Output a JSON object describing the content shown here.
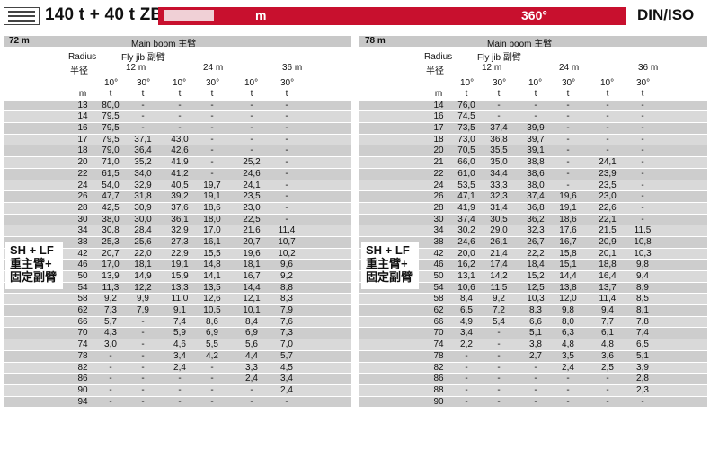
{
  "header": {
    "title": "140 t + 40 t ZB",
    "unit_m": "m",
    "slew": "360°",
    "standard": "DIN/ISO"
  },
  "panels": [
    {
      "boom_length": "72 m",
      "main_boom": "Main boom 主臂",
      "radius_en": "Radius",
      "radius_cn": "半径",
      "fly_jib": "Fly jib 副臂",
      "jib_lengths": [
        "12 m",
        "24 m",
        "36 m"
      ],
      "angles": [
        "10°",
        "30°",
        "10°",
        "30°",
        "10°",
        "30°"
      ],
      "units": [
        "m",
        "t",
        "t",
        "t",
        "t",
        "t",
        "t"
      ],
      "config_label": [
        "SH + LF",
        "重主臂+",
        "固定副臂"
      ],
      "rows": [
        [
          "13",
          "80,0",
          "-",
          "-",
          "-",
          "-",
          "-"
        ],
        [
          "14",
          "79,5",
          "-",
          "-",
          "-",
          "-",
          "-"
        ],
        [
          "16",
          "79,5",
          "-",
          "-",
          "-",
          "-",
          "-"
        ],
        [
          "17",
          "79,5",
          "37,1",
          "43,0",
          "-",
          "-",
          "-"
        ],
        [
          "18",
          "79,0",
          "36,4",
          "42,6",
          "-",
          "-",
          "-"
        ],
        [
          "20",
          "71,0",
          "35,2",
          "41,9",
          "-",
          "25,2",
          "-"
        ],
        [
          "22",
          "61,5",
          "34,0",
          "41,2",
          "-",
          "24,6",
          "-"
        ],
        [
          "24",
          "54,0",
          "32,9",
          "40,5",
          "19,7",
          "24,1",
          "-"
        ],
        [
          "26",
          "47,7",
          "31,8",
          "39,2",
          "19,1",
          "23,5",
          "-"
        ],
        [
          "28",
          "42,5",
          "30,9",
          "37,6",
          "18,6",
          "23,0",
          "-"
        ],
        [
          "30",
          "38,0",
          "30,0",
          "36,1",
          "18,0",
          "22,5",
          "-"
        ],
        [
          "34",
          "30,8",
          "28,4",
          "32,9",
          "17,0",
          "21,6",
          "11,4"
        ],
        [
          "38",
          "25,3",
          "25,6",
          "27,3",
          "16,1",
          "20,7",
          "10,7"
        ],
        [
          "42",
          "20,7",
          "22,0",
          "22,9",
          "15,5",
          "19,6",
          "10,2"
        ],
        [
          "46",
          "17,0",
          "18,1",
          "19,1",
          "14,8",
          "18,1",
          "9,6"
        ],
        [
          "50",
          "13,9",
          "14,9",
          "15,9",
          "14,1",
          "16,7",
          "9,2"
        ],
        [
          "54",
          "11,3",
          "12,2",
          "13,3",
          "13,5",
          "14,4",
          "8,8"
        ],
        [
          "58",
          "9,2",
          "9,9",
          "11,0",
          "12,6",
          "12,1",
          "8,3"
        ],
        [
          "62",
          "7,3",
          "7,9",
          "9,1",
          "10,5",
          "10,1",
          "7,9"
        ],
        [
          "66",
          "5,7",
          "-",
          "7,4",
          "8,6",
          "8,4",
          "7,6"
        ],
        [
          "70",
          "4,3",
          "-",
          "5,9",
          "6,9",
          "6,9",
          "7,3"
        ],
        [
          "74",
          "3,0",
          "-",
          "4,6",
          "5,5",
          "5,6",
          "7,0"
        ],
        [
          "78",
          "-",
          "-",
          "3,4",
          "4,2",
          "4,4",
          "5,7"
        ],
        [
          "82",
          "-",
          "-",
          "2,4",
          "-",
          "3,3",
          "4,5"
        ],
        [
          "86",
          "-",
          "-",
          "-",
          "-",
          "2,4",
          "3,4"
        ],
        [
          "90",
          "-",
          "-",
          "-",
          "-",
          "-",
          "2,4"
        ],
        [
          "94",
          "-",
          "-",
          "-",
          "-",
          "-",
          "-"
        ]
      ]
    },
    {
      "boom_length": "78 m",
      "main_boom": "Main boom 主臂",
      "radius_en": "Radius",
      "radius_cn": "半径",
      "fly_jib": "Fly jib 副臂",
      "jib_lengths": [
        "12 m",
        "24 m",
        "36 m"
      ],
      "angles": [
        "10°",
        "30°",
        "10°",
        "30°",
        "10°",
        "30°"
      ],
      "units": [
        "m",
        "t",
        "t",
        "t",
        "t",
        "t",
        "t"
      ],
      "config_label": [
        "SH + LF",
        "重主臂+",
        "固定副臂"
      ],
      "rows": [
        [
          "14",
          "76,0",
          "-",
          "-",
          "-",
          "-",
          "-"
        ],
        [
          "16",
          "74,5",
          "-",
          "-",
          "-",
          "-",
          "-"
        ],
        [
          "17",
          "73,5",
          "37,4",
          "39,9",
          "-",
          "-",
          "-"
        ],
        [
          "18",
          "73,0",
          "36,8",
          "39,7",
          "-",
          "-",
          "-"
        ],
        [
          "20",
          "70,5",
          "35,5",
          "39,1",
          "-",
          "-",
          "-"
        ],
        [
          "21",
          "66,0",
          "35,0",
          "38,8",
          "-",
          "24,1",
          "-"
        ],
        [
          "22",
          "61,0",
          "34,4",
          "38,6",
          "-",
          "23,9",
          "-"
        ],
        [
          "24",
          "53,5",
          "33,3",
          "38,0",
          "-",
          "23,5",
          "-"
        ],
        [
          "26",
          "47,1",
          "32,3",
          "37,4",
          "19,6",
          "23,0",
          "-"
        ],
        [
          "28",
          "41,9",
          "31,4",
          "36,8",
          "19,1",
          "22,6",
          "-"
        ],
        [
          "30",
          "37,4",
          "30,5",
          "36,2",
          "18,6",
          "22,1",
          "-"
        ],
        [
          "34",
          "30,2",
          "29,0",
          "32,3",
          "17,6",
          "21,5",
          "11,5"
        ],
        [
          "38",
          "24,6",
          "26,1",
          "26,7",
          "16,7",
          "20,9",
          "10,8"
        ],
        [
          "42",
          "20,0",
          "21,4",
          "22,2",
          "15,8",
          "20,1",
          "10,3"
        ],
        [
          "46",
          "16,2",
          "17,4",
          "18,4",
          "15,1",
          "18,8",
          "9,8"
        ],
        [
          "50",
          "13,1",
          "14,2",
          "15,2",
          "14,4",
          "16,4",
          "9,4"
        ],
        [
          "54",
          "10,6",
          "11,5",
          "12,5",
          "13,8",
          "13,7",
          "8,9"
        ],
        [
          "58",
          "8,4",
          "9,2",
          "10,3",
          "12,0",
          "11,4",
          "8,5"
        ],
        [
          "62",
          "6,5",
          "7,2",
          "8,3",
          "9,8",
          "9,4",
          "8,1"
        ],
        [
          "66",
          "4,9",
          "5,4",
          "6,6",
          "8,0",
          "7,7",
          "7,8"
        ],
        [
          "70",
          "3,4",
          "-",
          "5,1",
          "6,3",
          "6,1",
          "7,4"
        ],
        [
          "74",
          "2,2",
          "-",
          "3,8",
          "4,8",
          "4,8",
          "6,5"
        ],
        [
          "78",
          "-",
          "-",
          "2,7",
          "3,5",
          "3,6",
          "5,1"
        ],
        [
          "82",
          "-",
          "-",
          "-",
          "2,4",
          "2,5",
          "3,9"
        ],
        [
          "86",
          "-",
          "-",
          "-",
          "-",
          "-",
          "2,8"
        ],
        [
          "88",
          "-",
          "-",
          "-",
          "-",
          "-",
          "2,3"
        ],
        [
          "90",
          "-",
          "-",
          "-",
          "-",
          "-",
          "-"
        ]
      ]
    }
  ]
}
